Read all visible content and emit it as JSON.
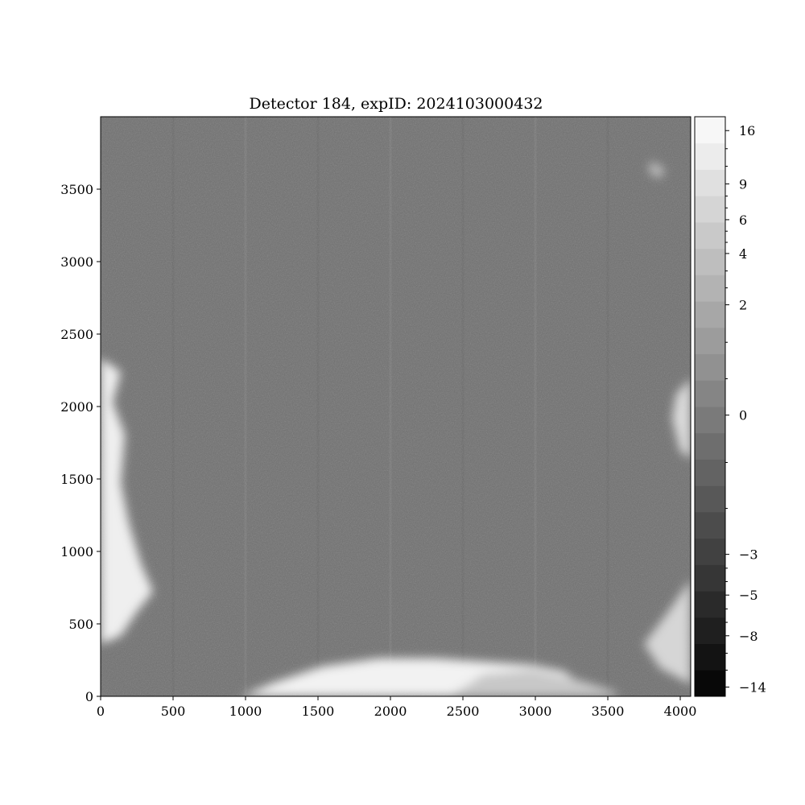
{
  "chart_data": {
    "type": "heatmap",
    "title": "Detector 184, expID: 2024103000432",
    "xlabel": "",
    "ylabel": "",
    "colormap": "gray",
    "xlim": [
      0,
      4072
    ],
    "ylim": [
      0,
      4000
    ],
    "x_ticks": [
      {
        "value": 0,
        "label": "0"
      },
      {
        "value": 500,
        "label": "500"
      },
      {
        "value": 1000,
        "label": "1000"
      },
      {
        "value": 1500,
        "label": "1500"
      },
      {
        "value": 2000,
        "label": "2000"
      },
      {
        "value": 2500,
        "label": "2500"
      },
      {
        "value": 3000,
        "label": "3000"
      },
      {
        "value": 3500,
        "label": "3500"
      },
      {
        "value": 4000,
        "label": "4000"
      }
    ],
    "y_ticks": [
      {
        "value": 0,
        "label": "0"
      },
      {
        "value": 500,
        "label": "500"
      },
      {
        "value": 1000,
        "label": "1000"
      },
      {
        "value": 1500,
        "label": "1500"
      },
      {
        "value": 2000,
        "label": "2000"
      },
      {
        "value": 2500,
        "label": "2500"
      },
      {
        "value": 3000,
        "label": "3000"
      },
      {
        "value": 3500,
        "label": "3500"
      }
    ],
    "colorbar": {
      "ticks": [
        {
          "value": -14,
          "label": "−14"
        },
        {
          "value": -8,
          "label": "−8"
        },
        {
          "value": -5,
          "label": "−5"
        },
        {
          "value": -3,
          "label": "−3"
        },
        {
          "value": 0,
          "label": "0"
        },
        {
          "value": 2,
          "label": "2"
        },
        {
          "value": 4,
          "label": "4"
        },
        {
          "value": 6,
          "label": "6"
        },
        {
          "value": 9,
          "label": "9"
        },
        {
          "value": 16,
          "label": "16"
        }
      ],
      "levels": 22
    },
    "background_level": -0.8,
    "bright_regions": [
      {
        "description": "bottom glow",
        "x_range": [
          1000,
          3700
        ],
        "y_range": [
          0,
          270
        ]
      },
      {
        "description": "left edge glow",
        "x_range": [
          0,
          350
        ],
        "y_range": [
          380,
          2330
        ]
      },
      {
        "description": "right edge patches",
        "x_range": [
          3700,
          4072
        ],
        "y_range": [
          0,
          2600
        ]
      }
    ]
  }
}
